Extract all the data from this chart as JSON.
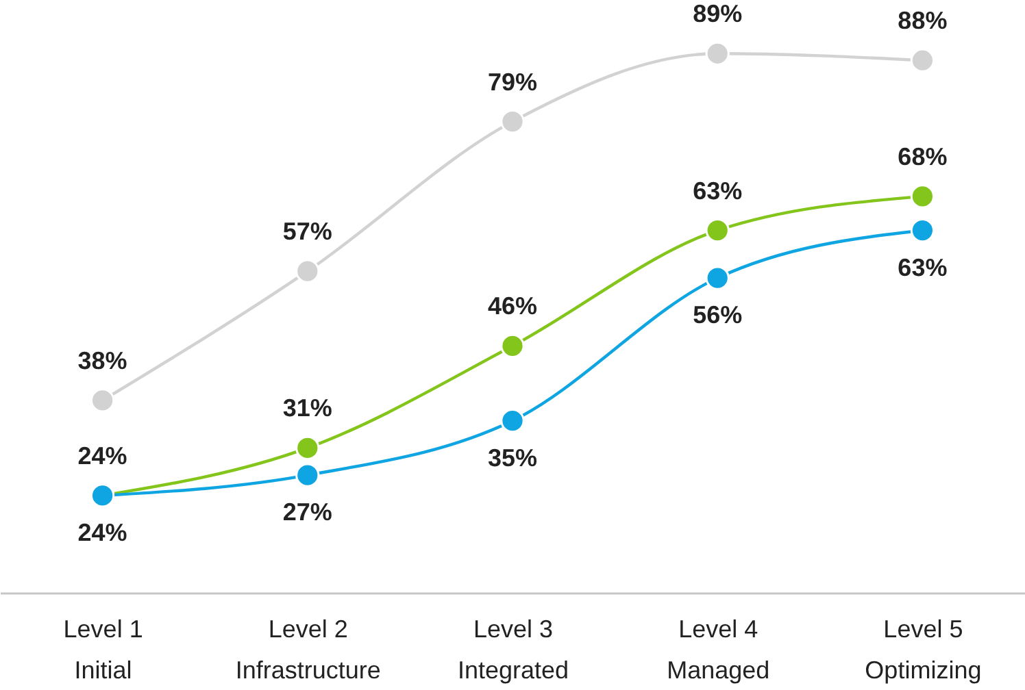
{
  "chart_data": {
    "type": "line",
    "categories": [
      "Level 1\nInitial",
      "Level 2\nInfrastructure",
      "Level 3\nIntegrated",
      "Level 4\nManaged",
      "Level 5\nOptimizing"
    ],
    "series": [
      {
        "color": "#d3d2d2",
        "values": [
          38,
          57,
          79,
          89,
          88
        ],
        "value_labels": [
          "38%",
          "57%",
          "79%",
          "89%",
          "88%"
        ]
      },
      {
        "color": "#84c51c",
        "values": [
          24,
          31,
          46,
          63,
          68
        ],
        "value_labels": [
          "24%",
          "31%",
          "46%",
          "63%",
          "68%"
        ]
      },
      {
        "color": "#0ea5e2",
        "values": [
          24,
          27,
          35,
          56,
          63
        ],
        "value_labels": [
          "24%",
          "27%",
          "35%",
          "56%",
          "63%"
        ]
      }
    ],
    "marker": "circle",
    "line_style": "solid",
    "grid": false
  }
}
